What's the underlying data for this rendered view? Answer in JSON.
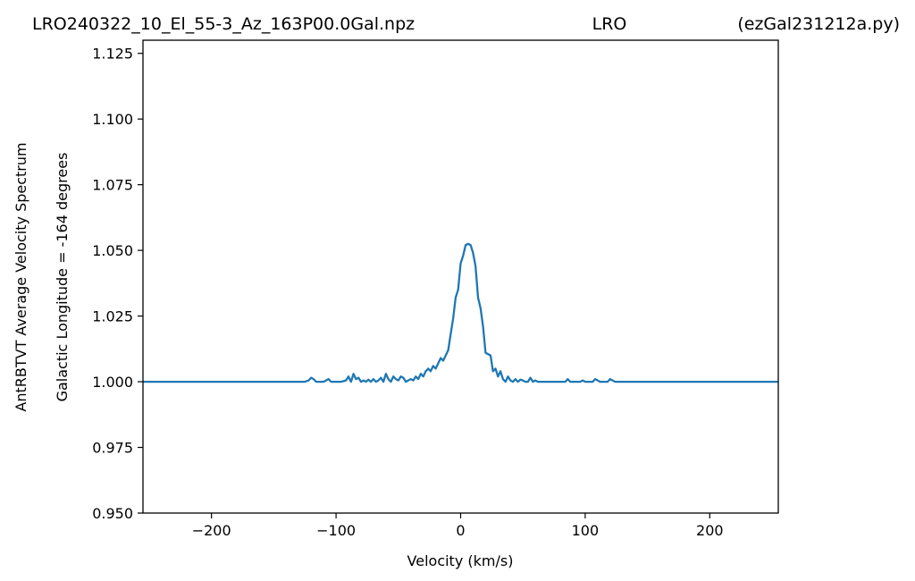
{
  "chart_data": {
    "type": "line",
    "title_left": "LRO240322_10_El_55-3_Az_163P00.0Gal.npz",
    "title_center": "LRO",
    "title_right": "(ezGal231212a.py)",
    "xlabel": "Velocity (km/s)",
    "ylabel_line1": "AntRBTVT Average Velocity Spectrum",
    "ylabel_line2": "Galactic Longitude = -164 degrees",
    "xlim": [
      -255,
      255
    ],
    "ylim": [
      0.95,
      1.13
    ],
    "xticks": [
      -200,
      -100,
      0,
      100,
      200
    ],
    "xtick_labels": [
      "−200",
      "−100",
      "0",
      "100",
      "200"
    ],
    "yticks": [
      0.95,
      0.975,
      1.0,
      1.025,
      1.05,
      1.075,
      1.1,
      1.125
    ],
    "ytick_labels": [
      "0.950",
      "0.975",
      "1.000",
      "1.025",
      "1.050",
      "1.075",
      "1.100",
      "1.125"
    ],
    "grid": false,
    "series": [
      {
        "color": "#1f77b4",
        "x": [
          -255,
          -125,
          -122,
          -120,
          -118,
          -116,
          -114,
          -110,
          -106,
          -104,
          -102,
          -96,
          -92,
          -90,
          -88,
          -86,
          -84,
          -82,
          -80,
          -78,
          -76,
          -74,
          -72,
          -70,
          -68,
          -66,
          -64,
          -62,
          -60,
          -58,
          -56,
          -54,
          -52,
          -50,
          -48,
          -46,
          -44,
          -42,
          -40,
          -38,
          -36,
          -34,
          -32,
          -30,
          -28,
          -26,
          -24,
          -22,
          -20,
          -18,
          -16,
          -14,
          -12,
          -10,
          -8,
          -6,
          -4,
          -2,
          0,
          2,
          4,
          6,
          8,
          10,
          12,
          14,
          16,
          18,
          20,
          22,
          24,
          26,
          28,
          30,
          32,
          34,
          36,
          38,
          40,
          42,
          44,
          46,
          48,
          50,
          52,
          54,
          56,
          58,
          60,
          62,
          64,
          66,
          68,
          70,
          80,
          84,
          86,
          88,
          92,
          96,
          98,
          100,
          104,
          106,
          108,
          112,
          116,
          118,
          120,
          124,
          255
        ],
        "y": [
          1.0,
          1.0,
          1.0005,
          1.0015,
          1.001,
          1.0,
          1.0,
          1.0,
          1.001,
          1.0,
          1.0,
          1.0,
          1.0005,
          1.002,
          1.0,
          1.003,
          1.001,
          1.0015,
          1.0,
          1.0005,
          1.0,
          1.0008,
          1.0,
          1.001,
          1.0,
          1.0005,
          1.0015,
          1.0,
          1.003,
          1.001,
          1.0,
          1.002,
          1.001,
          1.0005,
          1.002,
          1.0015,
          1.0,
          1.0005,
          1.001,
          1.0005,
          1.002,
          1.001,
          1.003,
          1.002,
          1.004,
          1.005,
          1.004,
          1.006,
          1.005,
          1.007,
          1.009,
          1.008,
          1.01,
          1.012,
          1.018,
          1.024,
          1.032,
          1.035,
          1.045,
          1.048,
          1.052,
          1.0525,
          1.052,
          1.049,
          1.044,
          1.032,
          1.028,
          1.021,
          1.011,
          1.0105,
          1.01,
          1.004,
          1.005,
          1.002,
          1.004,
          1.001,
          1.0,
          1.002,
          1.0005,
          1.0,
          1.001,
          1.0,
          1.0008,
          1.0005,
          1.0,
          1.0,
          1.0015,
          1.0,
          1.0005,
          1.0,
          1.0,
          1.0,
          1.0,
          1.0,
          1.0,
          1.0,
          1.001,
          1.0,
          1.0,
          1.0,
          1.0005,
          1.0,
          1.0,
          1.0,
          1.001,
          1.0,
          1.0,
          1.0,
          1.001,
          1.0,
          1.0
        ]
      }
    ]
  }
}
